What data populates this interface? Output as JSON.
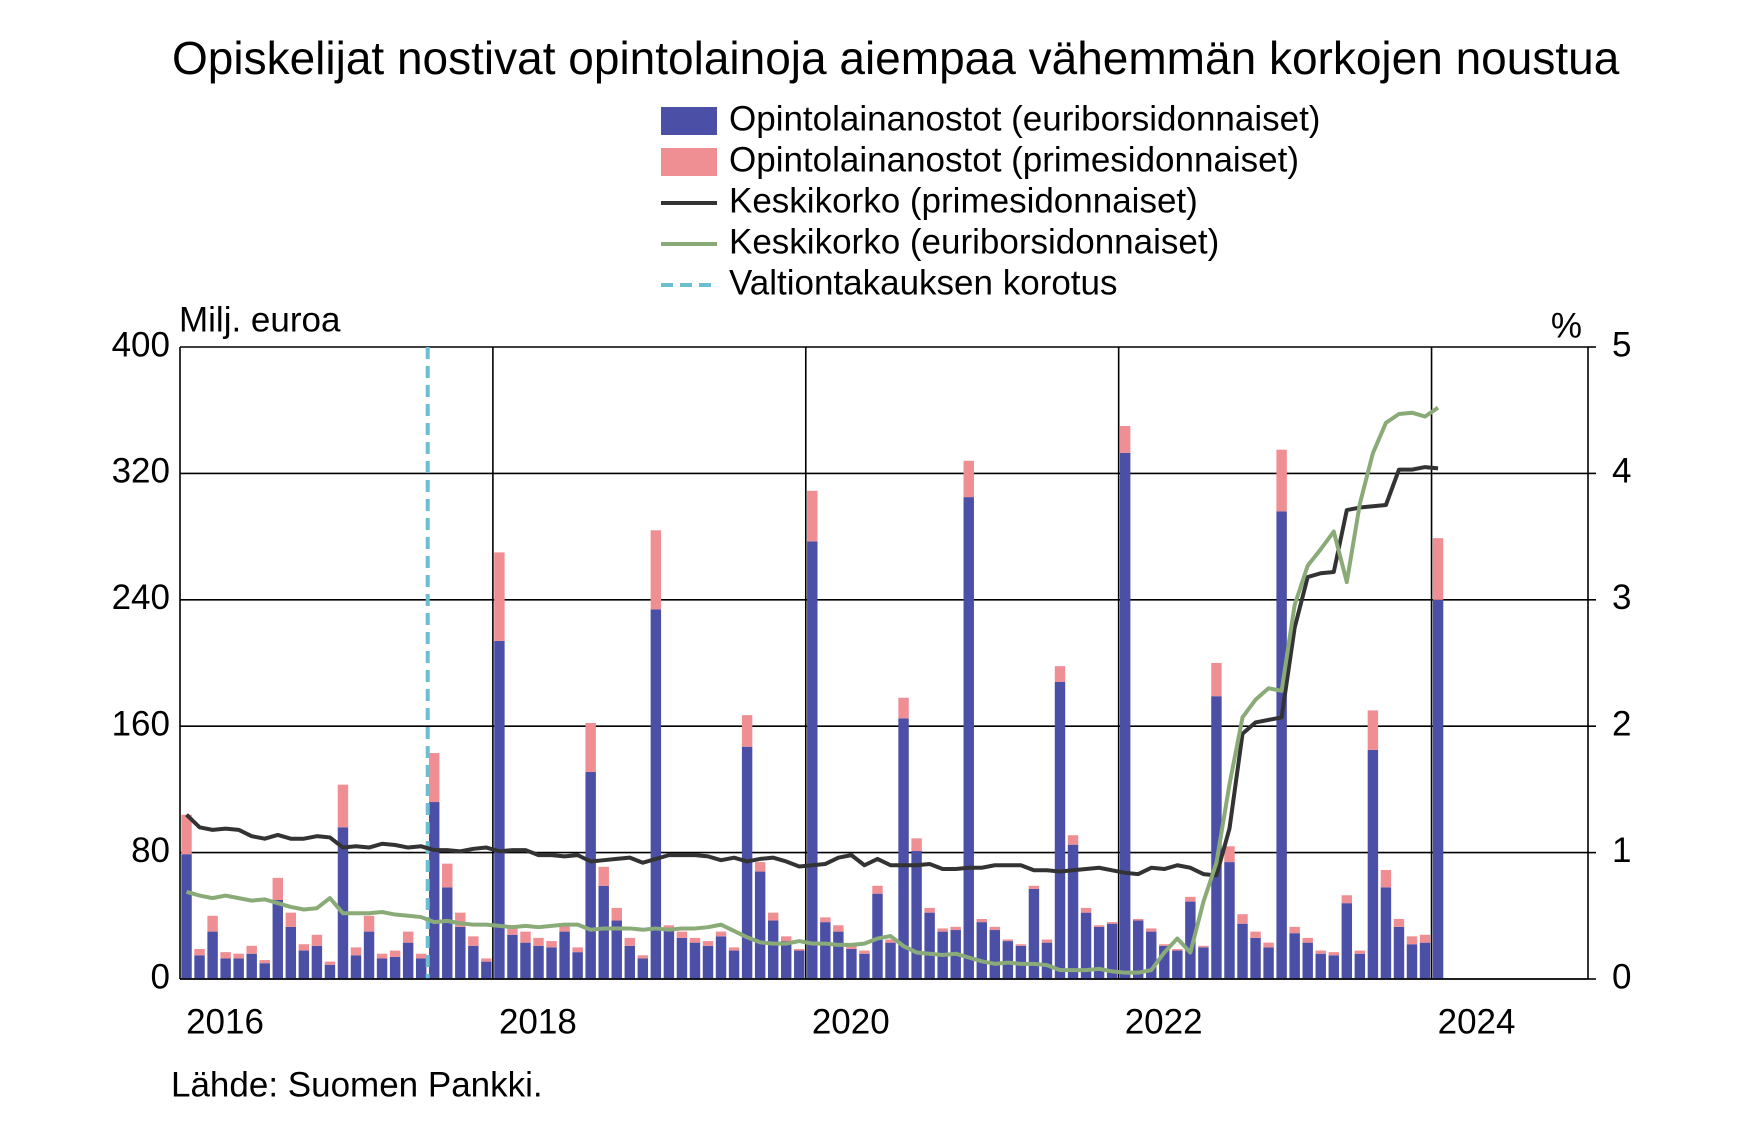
{
  "chart_data": {
    "type": "bar",
    "title": "Opiskelijat nostivat opintolainoja aiempaa vähemmän korkojen noustua",
    "ylabel": "Milj. euroa",
    "y2label": "%",
    "source": "Lähde: Suomen Pankki.",
    "categories": [
      "2016",
      null,
      null,
      null,
      null,
      null,
      null,
      null,
      null,
      null,
      null,
      null,
      null,
      null,
      null,
      null,
      null,
      null,
      null,
      null,
      null,
      null,
      null,
      null,
      "2018",
      null,
      null,
      null,
      null,
      null,
      null,
      null,
      null,
      null,
      null,
      null,
      null,
      null,
      null,
      null,
      null,
      null,
      null,
      null,
      null,
      null,
      null,
      null,
      "2020",
      null,
      null,
      null,
      null,
      null,
      null,
      null,
      null,
      null,
      null,
      null,
      null,
      null,
      null,
      null,
      null,
      null,
      null,
      null,
      null,
      null,
      null,
      null,
      "2022",
      null,
      null,
      null,
      null,
      null,
      null,
      null,
      null,
      null,
      null,
      null,
      null,
      null,
      null,
      null,
      null,
      null,
      null,
      null,
      null,
      null,
      null,
      null,
      "2024",
      null,
      null,
      null,
      null,
      null,
      null,
      null,
      null,
      null,
      null,
      null
    ],
    "series": [
      {
        "name": "Opintolainanostot (euriborsidonnaiset)",
        "type": "bar",
        "color": "#4b50a6",
        "values": [
          79,
          15,
          30,
          13,
          13,
          16,
          10,
          50,
          33,
          18,
          21,
          9,
          96,
          15,
          30,
          13,
          14,
          23,
          13,
          112,
          58,
          33,
          21,
          11,
          214,
          28,
          23,
          21,
          20,
          30,
          17,
          131,
          59,
          37,
          21,
          13,
          234,
          31,
          26,
          23,
          21,
          27,
          18,
          147,
          68,
          37,
          24,
          18,
          277,
          36,
          30,
          19,
          16,
          54,
          23,
          165,
          81,
          42,
          30,
          31,
          305,
          36,
          31,
          24,
          21,
          57,
          23,
          188,
          85,
          42,
          33,
          35,
          333,
          37,
          30,
          21,
          18,
          49,
          20,
          179,
          74,
          35,
          26,
          20,
          296,
          29,
          23,
          16,
          15,
          48,
          16,
          145,
          58,
          33,
          22,
          23,
          240,
          null,
          null,
          null,
          null,
          null,
          null,
          null,
          null,
          null,
          null,
          null
        ]
      },
      {
        "name": "Opintolainanostot (primesidonnaiset)",
        "type": "bar",
        "color": "#ef8e93",
        "values": [
          25,
          4,
          10,
          4,
          3,
          5,
          2,
          14,
          9,
          4,
          7,
          2,
          27,
          5,
          10,
          3,
          4,
          7,
          3,
          31,
          15,
          9,
          6,
          2,
          56,
          6,
          7,
          5,
          4,
          5,
          3,
          31,
          12,
          8,
          5,
          2,
          50,
          3,
          4,
          3,
          3,
          3,
          2,
          20,
          6,
          5,
          3,
          1,
          32,
          3,
          4,
          2,
          2,
          5,
          2,
          13,
          8,
          3,
          2,
          2,
          23,
          2,
          2,
          1,
          1,
          2,
          2,
          10,
          6,
          3,
          1,
          1,
          17,
          1,
          2,
          1,
          1,
          3,
          1,
          21,
          10,
          6,
          4,
          3,
          39,
          4,
          3,
          2,
          2,
          5,
          2,
          25,
          11,
          5,
          5,
          5,
          39,
          null,
          null,
          null,
          null,
          null,
          null,
          null,
          null,
          null,
          null,
          null
        ]
      },
      {
        "name": "Keskikorko (primesidonnaiset)",
        "type": "line",
        "axis": "y2",
        "color": "#333333",
        "values": [
          1.3,
          1.2,
          1.18,
          1.19,
          1.18,
          1.13,
          1.11,
          1.14,
          1.11,
          1.11,
          1.13,
          1.12,
          1.04,
          1.05,
          1.04,
          1.07,
          1.06,
          1.04,
          1.05,
          1.02,
          1.02,
          1.01,
          1.03,
          1.04,
          1.01,
          1.02,
          1.02,
          0.98,
          0.98,
          0.97,
          0.98,
          0.93,
          0.94,
          0.95,
          0.96,
          0.92,
          0.95,
          0.98,
          0.98,
          0.98,
          0.97,
          0.94,
          0.96,
          0.93,
          0.95,
          0.96,
          0.93,
          0.89,
          0.9,
          0.91,
          0.96,
          0.98,
          0.9,
          0.95,
          0.9,
          0.9,
          0.9,
          0.91,
          0.87,
          0.87,
          0.88,
          0.88,
          0.9,
          0.9,
          0.9,
          0.86,
          0.86,
          0.85,
          0.86,
          0.87,
          0.88,
          0.86,
          0.84,
          0.83,
          0.88,
          0.87,
          0.9,
          0.88,
          0.83,
          0.82,
          1.19,
          1.94,
          2.03,
          2.05,
          2.07,
          2.78,
          3.18,
          3.21,
          3.22,
          3.71,
          3.73,
          3.74,
          3.75,
          4.03,
          4.03,
          4.05,
          4.04,
          null,
          null,
          null,
          null,
          null,
          null,
          null,
          null,
          null,
          null,
          null
        ]
      },
      {
        "name": "Keskikorko (euriborsidonnaiset)",
        "type": "line",
        "axis": "y2",
        "color": "#8aab78",
        "values": [
          0.69,
          0.66,
          0.64,
          0.66,
          0.64,
          0.62,
          0.63,
          0.6,
          0.57,
          0.55,
          0.56,
          0.64,
          0.52,
          0.52,
          0.52,
          0.53,
          0.51,
          0.5,
          0.49,
          0.45,
          0.46,
          0.44,
          0.43,
          0.43,
          0.42,
          0.41,
          0.42,
          0.41,
          0.42,
          0.43,
          0.43,
          0.39,
          0.4,
          0.4,
          0.4,
          0.39,
          0.4,
          0.39,
          0.4,
          0.4,
          0.41,
          0.43,
          0.38,
          0.33,
          0.29,
          0.28,
          0.28,
          0.3,
          0.28,
          0.28,
          0.27,
          0.27,
          0.28,
          0.32,
          0.34,
          0.26,
          0.21,
          0.2,
          0.19,
          0.2,
          0.17,
          0.14,
          0.12,
          0.13,
          0.12,
          0.12,
          0.11,
          0.07,
          0.07,
          0.07,
          0.08,
          0.06,
          0.05,
          0.05,
          0.07,
          0.21,
          0.32,
          0.21,
          0.61,
          0.92,
          1.54,
          2.07,
          2.21,
          2.3,
          2.28,
          2.96,
          3.27,
          3.4,
          3.54,
          3.14,
          3.76,
          4.16,
          4.4,
          4.47,
          4.48,
          4.45,
          4.52,
          null,
          null,
          null,
          null,
          null,
          null,
          null,
          null,
          null,
          null,
          null
        ]
      }
    ],
    "events": [
      {
        "name": "Valtiontakauksen korotus",
        "category_index": 19,
        "color": "#6bbfd0"
      }
    ],
    "ylim": [
      0,
      400
    ],
    "yticks": [
      0,
      80,
      160,
      240,
      320,
      400
    ],
    "y2lim": [
      0,
      5
    ],
    "y2ticks": [
      0,
      1,
      2,
      3,
      4,
      5
    ],
    "grid": true
  }
}
